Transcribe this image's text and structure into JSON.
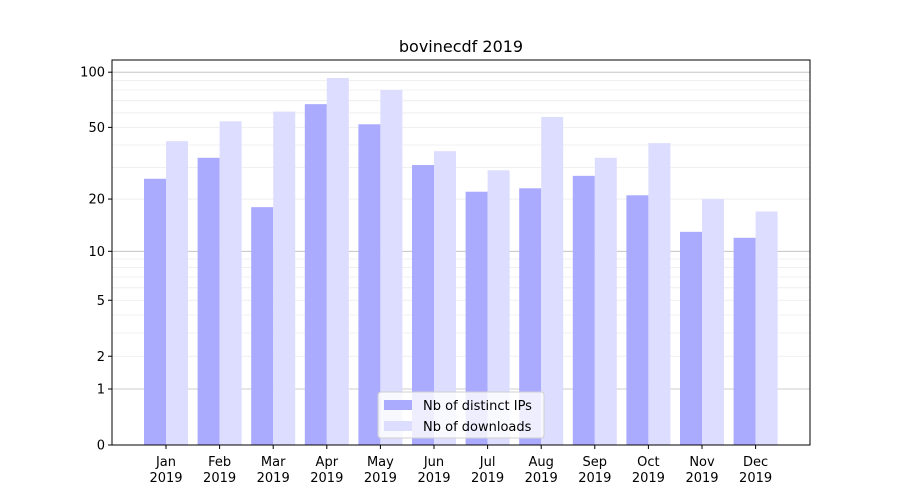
{
  "chart_data": {
    "type": "bar",
    "title": "bovinecdf 2019",
    "xlabel": "",
    "ylabel": "",
    "yscale": "log10(y+1)",
    "ylim": [
      0,
      110
    ],
    "yticks": [
      0,
      1,
      2,
      5,
      10,
      20,
      50,
      100
    ],
    "ytick_labels": [
      "0",
      "1",
      "2",
      "5",
      "10",
      "20",
      "50",
      "100"
    ],
    "categories": [
      "Jan\n2019",
      "Feb\n2019",
      "Mar\n2019",
      "Apr\n2019",
      "May\n2019",
      "Jun\n2019",
      "Jul\n2019",
      "Aug\n2019",
      "Sep\n2019",
      "Oct\n2019",
      "Nov\n2019",
      "Dec\n2019"
    ],
    "category_months": [
      "Jan",
      "Feb",
      "Mar",
      "Apr",
      "May",
      "Jun",
      "Jul",
      "Aug",
      "Sep",
      "Oct",
      "Nov",
      "Dec"
    ],
    "category_year": "2019",
    "grid": "horizontal, major and minor",
    "legend_position": "lower-center",
    "series": [
      {
        "name": "Nb of distinct IPs",
        "color": "#aaaaff",
        "values": [
          26,
          34,
          18,
          67,
          52,
          31,
          22,
          23,
          27,
          21,
          13,
          12
        ]
      },
      {
        "name": "Nb of downloads",
        "color": "#ddddff",
        "values": [
          42,
          54,
          61,
          93,
          80,
          37,
          29,
          57,
          34,
          41,
          20,
          17
        ]
      }
    ]
  }
}
